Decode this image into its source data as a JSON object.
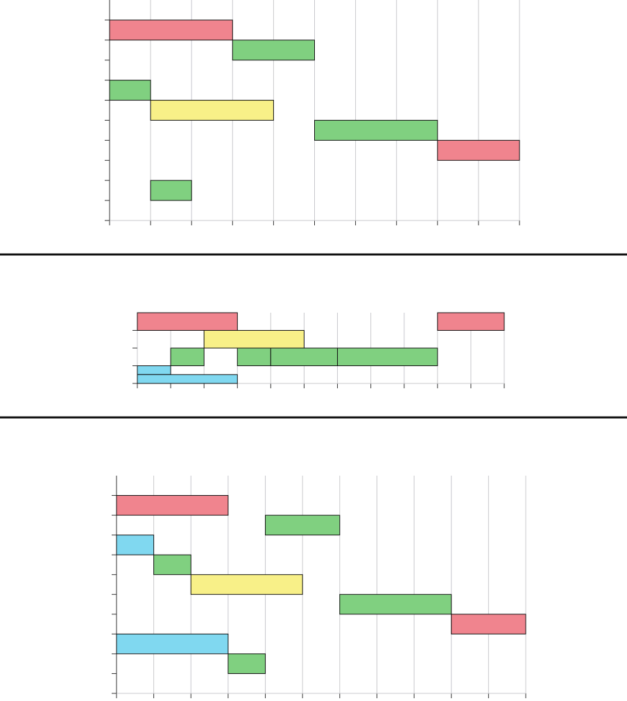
{
  "chart_data": [
    {
      "type": "gantt",
      "xlim": [
        0,
        10
      ],
      "xticks": [
        0,
        1,
        2,
        3,
        4,
        5,
        6,
        7,
        8,
        9,
        10
      ],
      "ylim": [
        0,
        11
      ],
      "yticks": [
        0,
        1,
        2,
        3,
        4,
        5,
        6,
        7,
        8,
        9,
        10
      ],
      "grid": true,
      "series": [
        {
          "color": "#f0848e",
          "start": [
            0,
            8
          ],
          "end": [
            3,
            10
          ],
          "bottom": [
            9,
            3
          ],
          "top": [
            10,
            4
          ]
        },
        {
          "color": "#80d080",
          "start": [
            3,
            0,
            5,
            1
          ],
          "end": [
            5,
            1,
            8,
            2
          ],
          "bottom": [
            8,
            6,
            4,
            1
          ],
          "top": [
            9,
            7,
            5,
            2
          ]
        },
        {
          "color": "#f8f088",
          "start": [
            1
          ],
          "end": [
            4
          ],
          "bottom": [
            5
          ],
          "top": [
            6
          ]
        }
      ]
    },
    {
      "type": "gantt",
      "xlim": [
        0,
        11
      ],
      "xticks": [
        0,
        1,
        2,
        3,
        4,
        5,
        6,
        7,
        8,
        9,
        10,
        11
      ],
      "ylim": [
        0,
        4
      ],
      "yticks": [
        0,
        1,
        2,
        3
      ],
      "grid": true,
      "series": [
        {
          "color": "#f0848e",
          "start": [
            0,
            9
          ],
          "end": [
            3,
            11
          ],
          "bottom": [
            3,
            3
          ],
          "top": [
            4,
            4
          ]
        },
        {
          "color": "#f8f088",
          "start": [
            2
          ],
          "end": [
            5
          ],
          "bottom": [
            2
          ],
          "top": [
            3
          ]
        },
        {
          "color": "#80d080",
          "start": [
            1,
            3,
            4,
            6
          ],
          "end": [
            2,
            4,
            6,
            9
          ],
          "bottom": [
            1,
            1,
            1,
            1
          ],
          "top": [
            2,
            2,
            2,
            2
          ]
        },
        {
          "color": "#80d8f0",
          "start": [
            0,
            0
          ],
          "end": [
            1,
            3
          ],
          "bottom": [
            0.5,
            0
          ],
          "top": [
            1,
            0.5
          ]
        }
      ]
    },
    {
      "type": "gantt",
      "xlim": [
        0,
        11
      ],
      "xticks": [
        0,
        1,
        2,
        3,
        4,
        5,
        6,
        7,
        8,
        9,
        10,
        11
      ],
      "ylim": [
        0,
        11
      ],
      "yticks": [
        0,
        1,
        2,
        3,
        4,
        5,
        6,
        7,
        8,
        9,
        10
      ],
      "grid": true,
      "series": [
        {
          "color": "#f0848e",
          "start": [
            0,
            9
          ],
          "end": [
            3,
            11
          ],
          "bottom": [
            9,
            3
          ],
          "top": [
            10,
            4
          ]
        },
        {
          "color": "#80d080",
          "start": [
            4,
            1,
            6,
            3
          ],
          "end": [
            6,
            2,
            9,
            4
          ],
          "bottom": [
            8,
            6,
            4,
            1
          ],
          "top": [
            9,
            7,
            5,
            2
          ]
        },
        {
          "color": "#80d8f0",
          "start": [
            0,
            0
          ],
          "end": [
            1,
            3
          ],
          "bottom": [
            7,
            2
          ],
          "top": [
            8,
            3
          ]
        },
        {
          "color": "#f8f088",
          "start": [
            2
          ],
          "end": [
            5
          ],
          "bottom": [
            5
          ],
          "top": [
            6
          ]
        }
      ]
    }
  ]
}
